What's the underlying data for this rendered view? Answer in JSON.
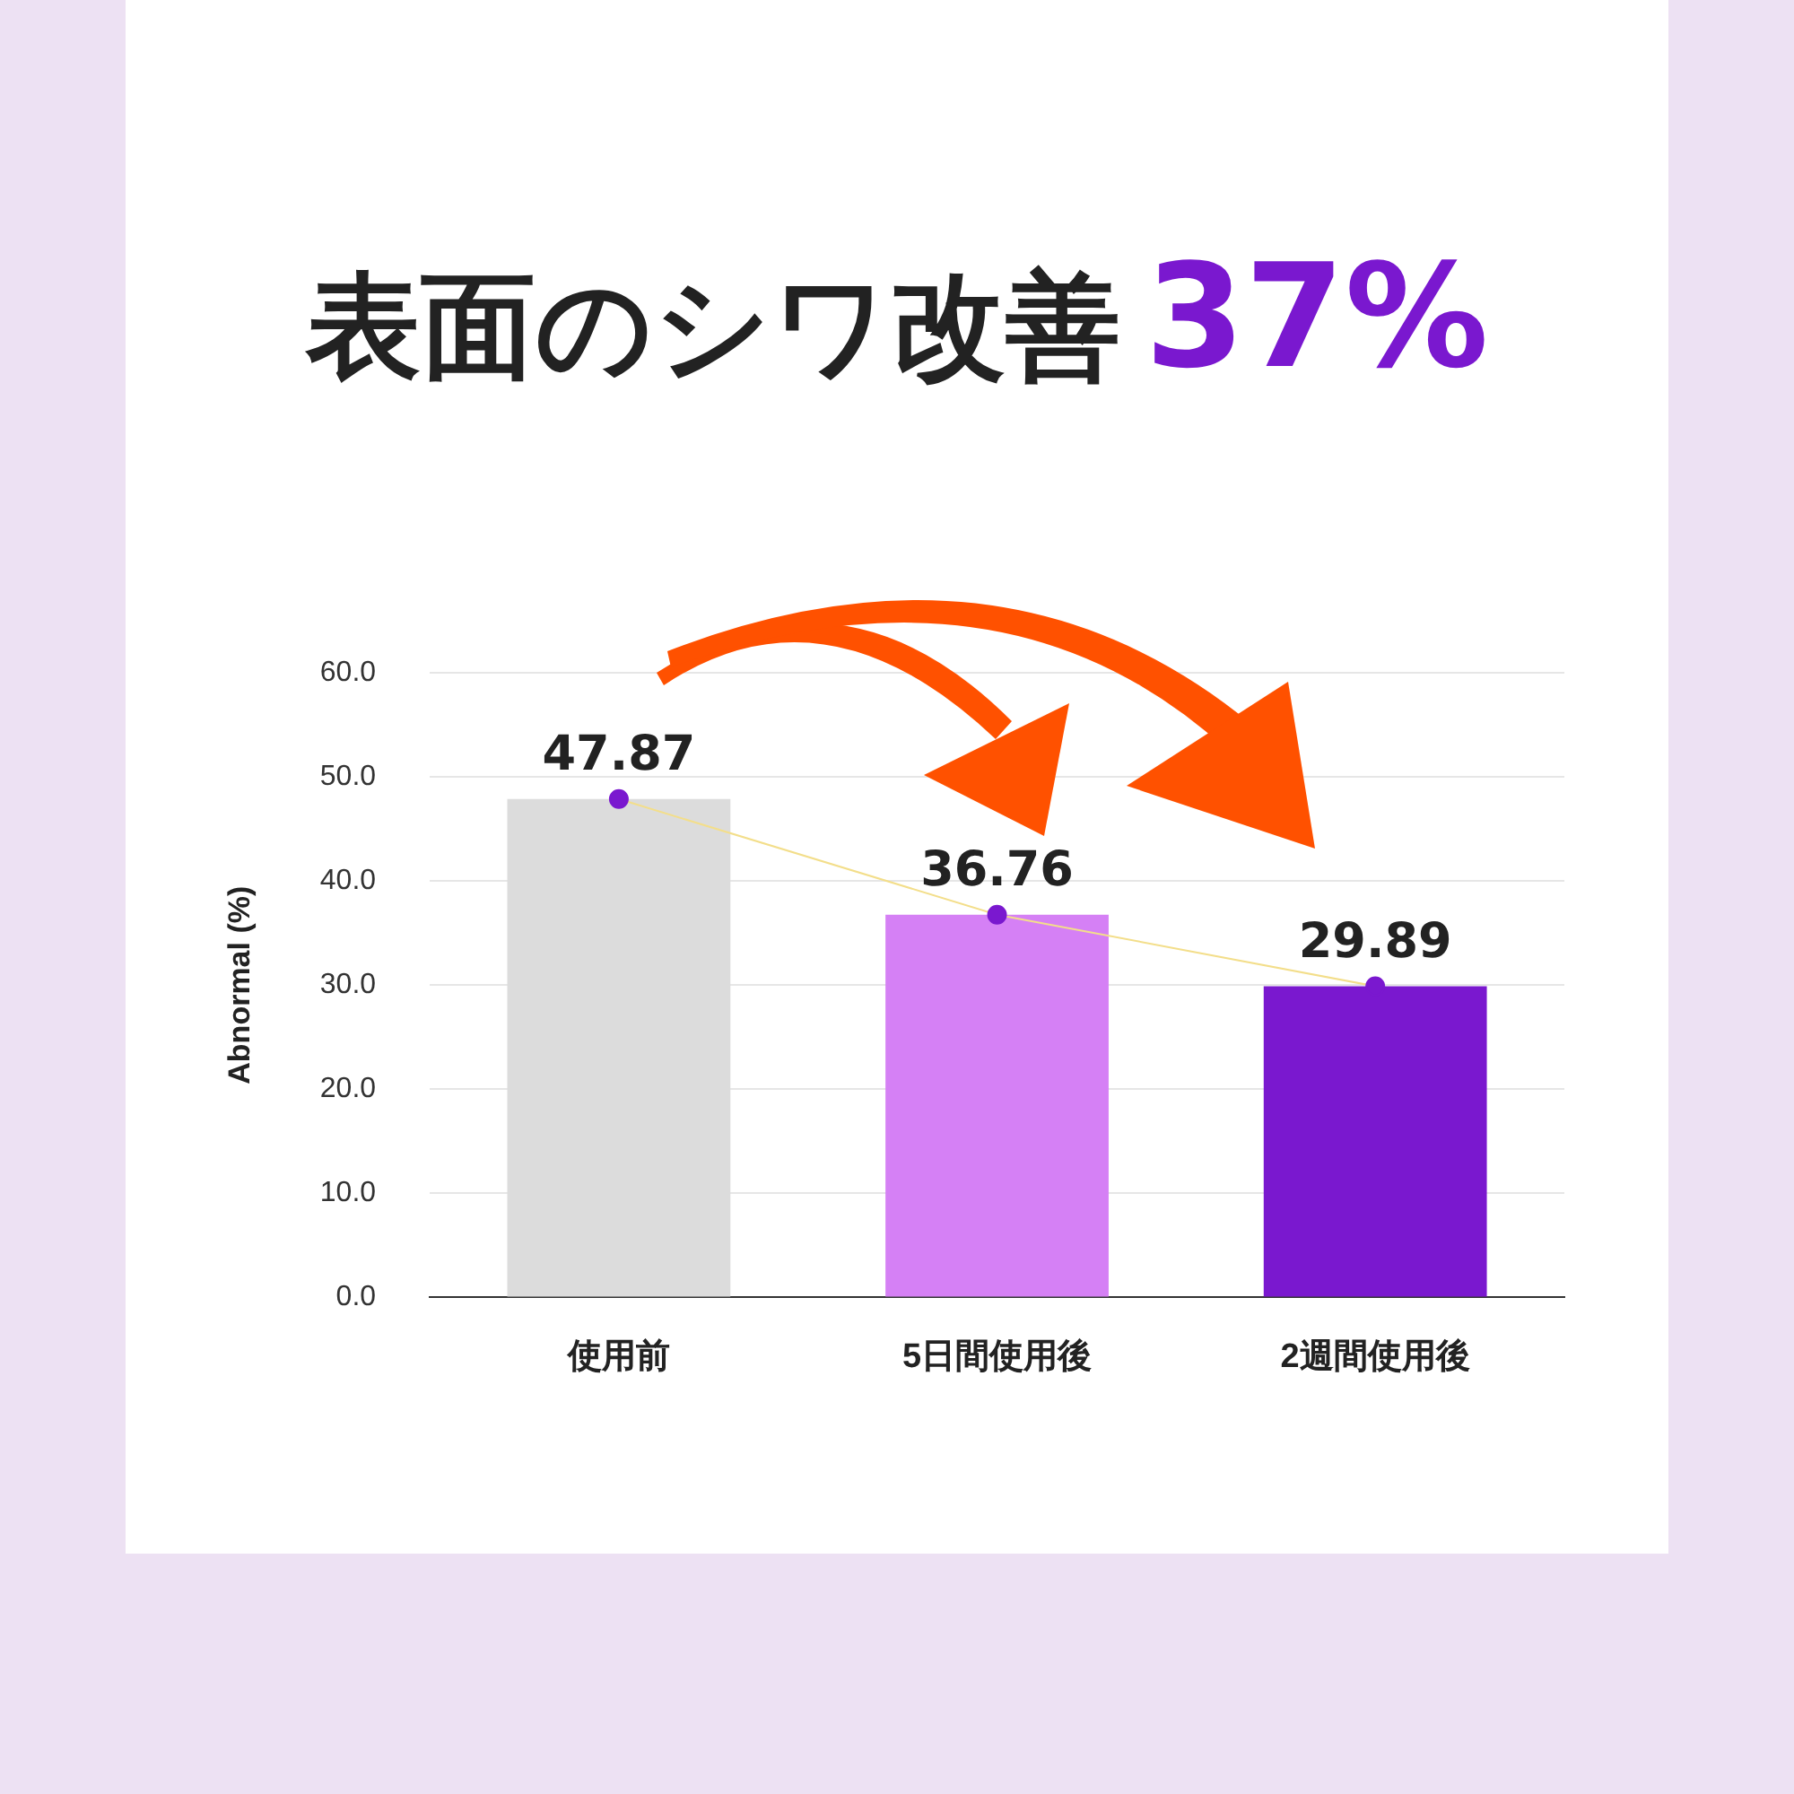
{
  "chart_data": {
    "type": "bar",
    "title": "表面のシワ改善",
    "subtitle": "37%",
    "ylabel": "Abnormal (%)",
    "categories": [
      "使用前",
      "5日間使用後",
      "2週間使用後"
    ],
    "series": [
      {
        "colors": [
          "#dcdcdc",
          "#d580f5",
          "#7a18cf"
        ],
        "values": [
          47.87,
          36.76,
          29.89
        ],
        "value_labels": [
          "47.87",
          "36.76",
          "29.89"
        ]
      },
      {
        "type": "line",
        "color": "#f3de8a",
        "colors": [
          "#7a18cf",
          "#7a18cf",
          "#7a18cf"
        ],
        "values": [
          47.87,
          36.76,
          29.89
        ]
      }
    ],
    "ylim": [
      0,
      60
    ],
    "yticks": [
      {
        "value": 0,
        "label": "0.0"
      },
      {
        "value": 10,
        "label": "10.0"
      },
      {
        "value": 20,
        "label": "20.0"
      },
      {
        "value": 30,
        "label": "30.0"
      },
      {
        "value": 40,
        "label": "40.0"
      },
      {
        "value": 50,
        "label": "50.0"
      },
      {
        "value": 60,
        "label": "60.0"
      }
    ],
    "grid": "y",
    "marker": "circle",
    "line_style": "solid",
    "legend": false
  }
}
